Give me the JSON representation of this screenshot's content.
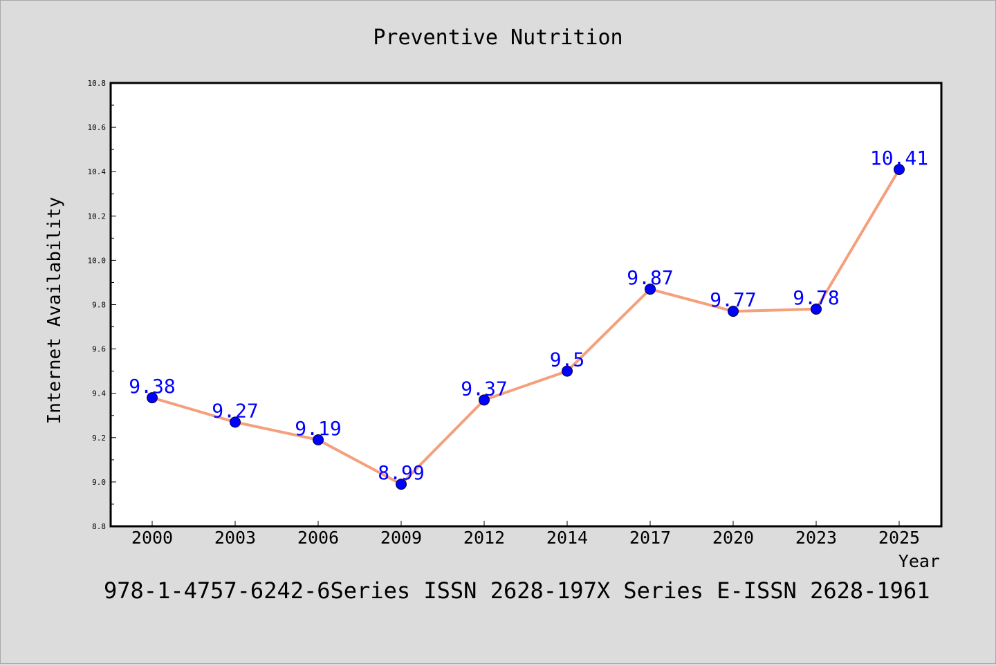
{
  "chart_data": {
    "type": "line",
    "title": "Preventive Nutrition",
    "xlabel": "Year",
    "ylabel": "Internet Availability",
    "categories": [
      "2000",
      "2003",
      "2006",
      "2009",
      "2012",
      "2014",
      "2017",
      "2020",
      "2023",
      "2025"
    ],
    "series": [
      {
        "values": [
          9.38,
          9.27,
          9.19,
          8.99,
          9.37,
          9.5,
          9.87,
          9.77,
          9.78,
          10.41
        ],
        "data_labels": [
          "9.38",
          "9.27",
          "9.19",
          "8.99",
          "9.37",
          "9.5",
          "9.87",
          "9.77",
          "9.78",
          "10.41"
        ]
      }
    ],
    "ylim": [
      8.8,
      10.8
    ],
    "yticks": [
      "8.8",
      "9.0",
      "9.2",
      "9.4",
      "9.6",
      "9.8",
      "10.0",
      "10.2",
      "10.4",
      "10.6",
      "10.8"
    ],
    "grid": false,
    "colors": {
      "line": "#f4a07d",
      "marker": "#0000ff",
      "label": "#0000ff"
    }
  },
  "footer_text": "978-1-4757-6242-6Series ISSN 2628-197X Series E-ISSN 2628-1961"
}
